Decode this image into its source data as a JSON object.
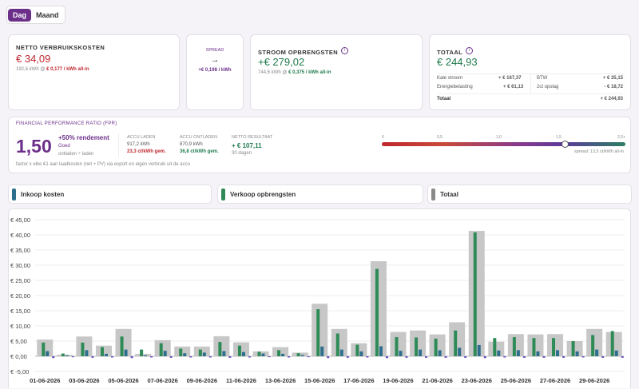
{
  "tabs": [
    "Dag",
    "Maand"
  ],
  "cost": {
    "title": "NETTO VERBRUIKSKOSTEN",
    "value": "€ 34,09",
    "detail_prefix": "192,6 kWh @",
    "detail_rate": "€ 0,177 / kWh all-in"
  },
  "spread": {
    "label": "SPREAD",
    "arrow": "→",
    "value": "+€ 0,198 / kWh"
  },
  "earnings": {
    "title": "STROOM OPBRENGSTEN",
    "value": "+€ 279,02",
    "detail_prefix": "744,6 kWh @",
    "detail_rate": "€ 0,375 / kWh all-in"
  },
  "total": {
    "title": "TOTAAL",
    "value": "€ 244,93",
    "left": [
      {
        "label": "Kale stroom",
        "value": "+ € 167,37"
      },
      {
        "label": "Energiebelasting",
        "value": "+ € 61,13"
      }
    ],
    "right": [
      {
        "label": "BTW",
        "value": "+ € 35,15"
      },
      {
        "label": "2ct opslag",
        "value": "- € 18,72"
      }
    ],
    "footer_label": "Totaal",
    "footer_value": "+ € 244,93"
  },
  "fpr": {
    "title": "FINANCIAL PERFORMANCE RATIO (FPR)",
    "value": "1,50",
    "rendement": "+50% rendement",
    "quality": "Goed",
    "sub": "ontladen ÷ laden",
    "footnote": "factor x elke €1 aan laadkosten (net + PV) via export en eigen verbruik uit de accu",
    "charge_label": "ACCU LADEN",
    "charge_kwh": "917,2 kWh",
    "charge_rate": "23,3 ct/kWh gem.",
    "discharge_label": "ACCU ONTLADEN",
    "discharge_kwh": "870,9 kWh",
    "discharge_rate": "36,8 ct/kWh gem.",
    "net_label": "NETTO RESULTAAT",
    "net_value": "+ € 107,11",
    "net_days": "30 dagen",
    "scale_ticks": [
      "0",
      "0,5",
      "1,0",
      "1,5",
      "2,0+"
    ],
    "scale_position": 0.75,
    "spread_note": "spread: 13,5 ct/kWh all-in"
  },
  "legend": [
    {
      "label": "Inkoop kosten",
      "color": "#2e6f8e"
    },
    {
      "label": "Verkoop opbrengsten",
      "color": "#2e8b57"
    },
    {
      "label": "Totaal",
      "color": "#8a8a8a"
    }
  ],
  "chart_data": {
    "type": "bar",
    "title": "",
    "xlabel": "",
    "ylabel": "",
    "ylim": [
      -5,
      45
    ],
    "yticks": [
      "€ -5,00",
      "€ 0,00",
      "€ 5,00",
      "€ 10,00",
      "€ 15,00",
      "€ 20,00",
      "€ 25,00",
      "€ 30,00",
      "€ 35,00",
      "€ 40,00",
      "€ 45,00"
    ],
    "x_tick_labels": [
      "01-06-2026",
      "03-06-2026",
      "05-06-2026",
      "07-06-2026",
      "09-06-2026",
      "11-06-2026",
      "13-06-2026",
      "15-06-2026",
      "17-06-2026",
      "19-06-2026",
      "21-06-2026",
      "23-06-2026",
      "25-06-2026",
      "27-06-2026",
      "29-06-2026"
    ],
    "categories": [
      "01-06-2026",
      "02-06-2026",
      "03-06-2026",
      "04-06-2026",
      "05-06-2026",
      "06-06-2026",
      "07-06-2026",
      "08-06-2026",
      "09-06-2026",
      "10-06-2026",
      "11-06-2026",
      "12-06-2026",
      "13-06-2026",
      "14-06-2026",
      "15-06-2026",
      "16-06-2026",
      "17-06-2026",
      "18-06-2026",
      "19-06-2026",
      "20-06-2026",
      "21-06-2026",
      "22-06-2026",
      "23-06-2026",
      "24-06-2026",
      "25-06-2026",
      "26-06-2026",
      "27-06-2026",
      "28-06-2026",
      "29-06-2026",
      "30-06-2026"
    ],
    "series": [
      {
        "name": "Totaal",
        "color": "#c7c7c7",
        "values": [
          5.5,
          0.5,
          6.5,
          3.5,
          9.0,
          0.8,
          5.3,
          3.2,
          3.2,
          6.6,
          4.6,
          1.6,
          3.0,
          1.2,
          17.3,
          9.0,
          4.3,
          31.3,
          8.0,
          8.5,
          7.2,
          11.2,
          41.3,
          4.8,
          7.3,
          7.2,
          7.3,
          5.0,
          9.0,
          8.0
        ]
      },
      {
        "name": "Verkoop opbrengsten",
        "color": "#2e8b57",
        "values": [
          4.5,
          0.9,
          4.5,
          3.0,
          6.5,
          2.2,
          4.3,
          2.5,
          2.2,
          4.7,
          3.5,
          1.5,
          2.0,
          1.0,
          15.5,
          7.5,
          3.8,
          28.8,
          6.3,
          6.2,
          5.8,
          8.5,
          40.8,
          6.0,
          6.3,
          6.0,
          6.0,
          5.0,
          7.0,
          8.3
        ]
      },
      {
        "name": "Inkoop kosten",
        "color": "#2e6f8e",
        "values": [
          1.7,
          0.3,
          2.0,
          0.8,
          2.2,
          0.3,
          1.8,
          1.0,
          1.2,
          1.7,
          1.4,
          0.9,
          0.8,
          0.4,
          3.2,
          2.2,
          1.6,
          3.3,
          1.8,
          2.2,
          2.0,
          2.8,
          3.7,
          1.9,
          2.0,
          1.6,
          2.0,
          1.6,
          2.2,
          1.9
        ]
      }
    ],
    "negative_marks": [
      -0.6,
      -0.3,
      -0.5,
      -0.4,
      -0.6,
      -0.4,
      -0.5,
      -0.4,
      -0.4,
      -0.5,
      -0.4,
      -0.3,
      -0.4,
      -0.3,
      -0.6,
      -0.5,
      -0.4,
      -0.6,
      -0.5,
      -0.5,
      -0.5,
      -0.5,
      -0.6,
      -0.4,
      -0.5,
      -0.5,
      -0.5,
      -0.4,
      -0.5,
      -0.5
    ],
    "negative_color": "#6a4fc4",
    "grid": true
  }
}
